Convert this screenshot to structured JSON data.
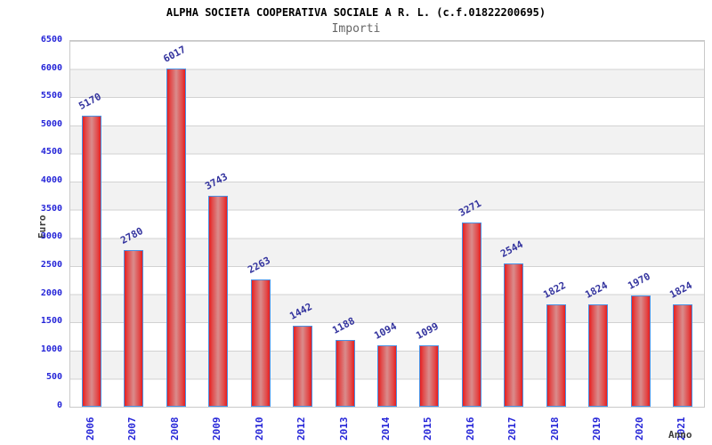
{
  "header": {
    "title": "ALPHA SOCIETA COOPERATIVA SOCIALE A R. L. (c.f.01822200695)",
    "subtitle": "Importi"
  },
  "chart_data": {
    "type": "bar",
    "title": "ALPHA SOCIETA COOPERATIVA SOCIALE A R. L. (c.f.01822200695)",
    "subtitle": "Importi",
    "xlabel": "Anno",
    "ylabel": "Euro",
    "categories": [
      "2006",
      "2007",
      "2008",
      "2009",
      "2010",
      "2012",
      "2013",
      "2014",
      "2015",
      "2016",
      "2017",
      "2018",
      "2019",
      "2020",
      "2021"
    ],
    "values": [
      5170,
      2780,
      6017,
      3743,
      2263,
      1442,
      1188,
      1094,
      1099,
      3271,
      2544,
      1822,
      1824,
      1970,
      1824
    ],
    "ylim": [
      0,
      6500
    ],
    "ytick_step": 500,
    "y_ticks": [
      6500,
      6000,
      5500,
      5000,
      4500,
      4000,
      3500,
      3000,
      2500,
      2000,
      1500,
      1000,
      500,
      0
    ],
    "grid": "horizontal gridlines every 500 with alternating white/gray bands",
    "legend_position": "none",
    "bar_value_label_rotation_deg": -28,
    "x_tick_rotation_deg": -90,
    "colors": {
      "bar_fill_edge": "#e81e1e",
      "bar_fill_mid": "#e14b4b",
      "bar_fill_center": "#d98c8c",
      "bar_border": "#4a90e2",
      "axis_tick_label": "#2525d8",
      "bar_value_label": "#33339e",
      "band_alt": "#f2f2f2",
      "grid_line": "#d2d2d2",
      "plot_border": "#c9c9c9",
      "title_color": "#000000",
      "subtitle_color": "#666666",
      "axis_name_color": "#3a3a3a"
    }
  }
}
